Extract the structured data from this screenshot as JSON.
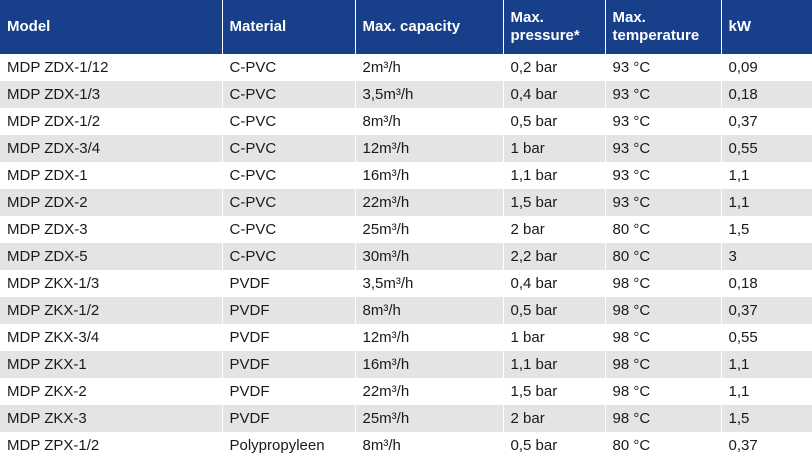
{
  "table": {
    "headers": [
      [
        "Model"
      ],
      [
        "Material"
      ],
      [
        "Max. capacity"
      ],
      [
        "Max.",
        "pressure*"
      ],
      [
        "Max.",
        "temperature"
      ],
      [
        "kW"
      ]
    ],
    "rows": [
      [
        "MDP ZDX-1/12",
        "C-PVC",
        "2m³/h",
        "0,2 bar",
        "93 °C",
        "0,09"
      ],
      [
        "MDP ZDX-1/3",
        "C-PVC",
        "3,5m³/h",
        "0,4 bar",
        "93 °C",
        "0,18"
      ],
      [
        "MDP ZDX-1/2",
        "C-PVC",
        "8m³/h",
        "0,5 bar",
        "93 °C",
        "0,37"
      ],
      [
        "MDP ZDX-3/4",
        "C-PVC",
        "12m³/h",
        "1 bar",
        "93 °C",
        "0,55"
      ],
      [
        "MDP ZDX-1",
        "C-PVC",
        "16m³/h",
        "1,1 bar",
        "93 °C",
        "1,1"
      ],
      [
        "MDP ZDX-2",
        "C-PVC",
        "22m³/h",
        "1,5 bar",
        "93 °C",
        "1,1"
      ],
      [
        "MDP ZDX-3",
        "C-PVC",
        "25m³/h",
        "2 bar",
        "80 °C",
        "1,5"
      ],
      [
        "MDP ZDX-5",
        "C-PVC",
        "30m³/h",
        "2,2 bar",
        "80 °C",
        "3"
      ],
      [
        "MDP ZKX-1/3",
        "PVDF",
        "3,5m³/h",
        "0,4 bar",
        "98 °C",
        "0,18"
      ],
      [
        "MDP ZKX-1/2",
        "PVDF",
        "8m³/h",
        "0,5 bar",
        "98 °C",
        "0,37"
      ],
      [
        "MDP ZKX-3/4",
        "PVDF",
        "12m³/h",
        "1 bar",
        "98 °C",
        "0,55"
      ],
      [
        "MDP ZKX-1",
        "PVDF",
        "16m³/h",
        "1,1 bar",
        "98 °C",
        "1,1"
      ],
      [
        "MDP ZKX-2",
        "PVDF",
        "22m³/h",
        "1,5 bar",
        "98 °C",
        "1,1"
      ],
      [
        "MDP ZKX-3",
        "PVDF",
        "25m³/h",
        "2 bar",
        "98 °C",
        "1,5"
      ],
      [
        "MDP ZPX-1/2",
        "Polypropyleen",
        "8m³/h",
        "0,5 bar",
        "80 °C",
        "0,37"
      ]
    ]
  },
  "colors": {
    "header_bg": "#173f8a",
    "header_text": "#ffffff",
    "row_alt_bg": "#e4e4e4",
    "row_bg": "#ffffff"
  }
}
